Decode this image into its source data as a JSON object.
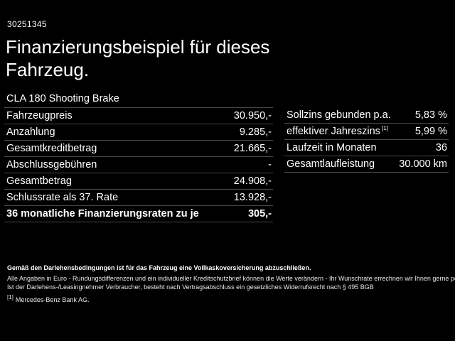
{
  "meta": {
    "reference_number": "30251345"
  },
  "header": {
    "title": "Finanzierungsbeispiel für dieses Fahrzeug.",
    "vehicle_model": "CLA 180 Shooting Brake"
  },
  "financing_table": {
    "rows": [
      {
        "label": "Fahrzeugpreis",
        "value": "30.950,-"
      },
      {
        "label": "Anzahlung",
        "value": "9.285,-"
      },
      {
        "label": "Gesamtkreditbetrag",
        "value": "21.665,-"
      },
      {
        "label": "Abschlussgebühren",
        "value": "-"
      },
      {
        "label": "Gesamtbetrag",
        "value": "24.908,-"
      },
      {
        "label": "Schlussrate als 37. Rate",
        "value": "13.928,-"
      },
      {
        "label": "36 monatliche Finanzierungsraten zu je",
        "value": "305,-"
      }
    ]
  },
  "conditions_table": {
    "rows": [
      {
        "label": "Sollzins gebunden p.a.",
        "value": "5,83 %"
      },
      {
        "label": "effektiver Jahreszins",
        "footnote_marker": "[1]",
        "value": "5,99 %"
      },
      {
        "label": "Laufzeit in Monaten",
        "value": "36"
      },
      {
        "label": "Gesamtlaufleistung",
        "value": "30.000 km"
      }
    ]
  },
  "fineprint": {
    "line1": "Gemäß den Darlehensbedingungen ist für das Fahrzeug eine Vollkaskoversicherung abzuschließen.",
    "line2": "Alle Angaben in Euro - Rundungsdifferenzen und ein individueller Kreditschutzbrief können die Werte verändern - Ihr Wunschrate errechnen wir Ihnen gerne persönlich",
    "line3": "Ist der Darlehens-/Leasingnehmer Verbraucher, besteht nach Vertragsabschluss ein gesetzliches Widerrufsrecht nach § 495 BGB",
    "source_marker": "[1]",
    "source_text": "Mercedes-Benz Bank AG."
  },
  "colors": {
    "background": "#000000",
    "text": "#ffffff",
    "divider": "#4a4a4a",
    "fineprint": "#e8e8e8"
  }
}
